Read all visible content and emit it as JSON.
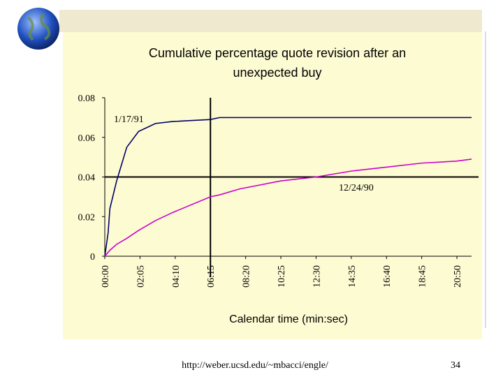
{
  "chart_data": {
    "type": "line",
    "title": "Cumulative percentage quote revision after an unexpected buy",
    "x_label": "Calendar time (min:sec)",
    "x": [
      0,
      0.2,
      0.3,
      0.7,
      1.3,
      2,
      3,
      4,
      6.25,
      6.8,
      8,
      10.4,
      12.5,
      14.6,
      16.7,
      18.75,
      20.8,
      21.7
    ],
    "series": [
      {
        "name": "1/17/91",
        "color": "#000066",
        "values": [
          0,
          0.012,
          0.024,
          0.038,
          0.055,
          0.063,
          0.067,
          0.068,
          0.069,
          0.07,
          0.07,
          0.07,
          0.07,
          0.07,
          0.07,
          0.07,
          0.07,
          0.07
        ]
      },
      {
        "name": "12/24/90",
        "color": "#cc00cc",
        "values": [
          0,
          0.002,
          0.003,
          0.006,
          0.009,
          0.013,
          0.018,
          0.022,
          0.03,
          0.031,
          0.034,
          0.038,
          0.04,
          0.043,
          0.045,
          0.047,
          0.048,
          0.049
        ]
      }
    ],
    "xlim": [
      0,
      21.7
    ],
    "xticks": [
      {
        "value": 0,
        "label": "00:00"
      },
      {
        "value": 2.0833,
        "label": "02:05"
      },
      {
        "value": 4.1667,
        "label": "04:10"
      },
      {
        "value": 6.25,
        "label": "06:15"
      },
      {
        "value": 8.3333,
        "label": "08:20"
      },
      {
        "value": 10.4167,
        "label": "10:25"
      },
      {
        "value": 12.5,
        "label": "12:30"
      },
      {
        "value": 14.5833,
        "label": "14:35"
      },
      {
        "value": 16.6667,
        "label": "16:40"
      },
      {
        "value": 18.75,
        "label": "18:45"
      },
      {
        "value": 20.8333,
        "label": "20:50"
      }
    ],
    "ylim": [
      0,
      0.08
    ],
    "yticks": [
      0,
      0.02,
      0.04,
      0.06,
      0.08
    ],
    "reference_lines": {
      "x": 6.25,
      "y": 0.04
    }
  },
  "footer": {
    "url": "http://weber.ucsd.edu/~mbacci/engle/",
    "page": "34"
  }
}
